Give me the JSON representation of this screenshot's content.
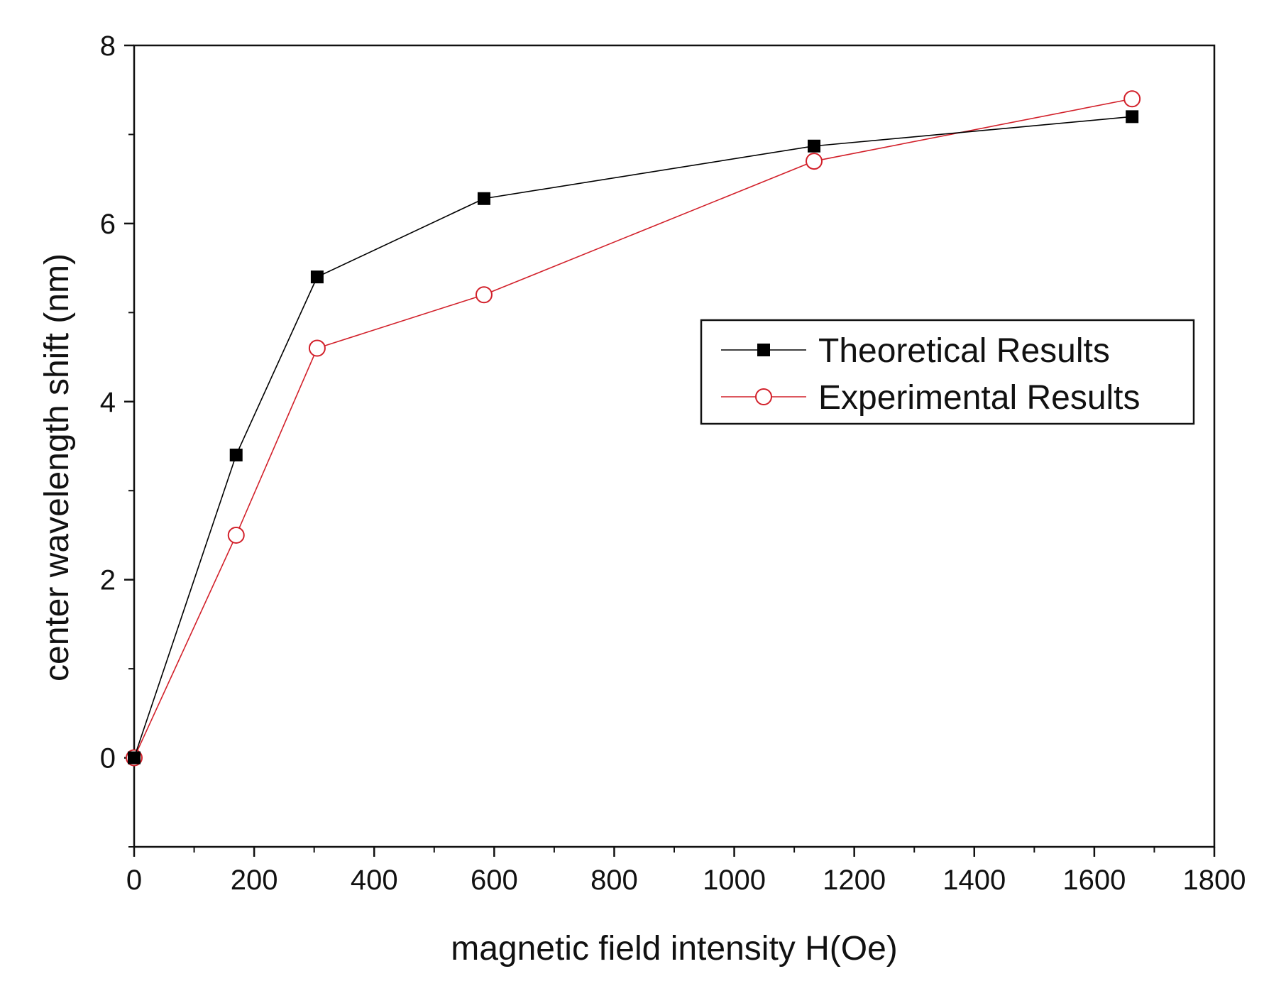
{
  "chart_data": {
    "type": "line",
    "title": "",
    "xlabel": "magnetic field intensity H(Oe)",
    "ylabel": "center wavelength shift (nm)",
    "xlim": [
      0,
      1800
    ],
    "ylim": [
      -1,
      8
    ],
    "xticks": [
      0,
      200,
      400,
      600,
      800,
      1000,
      1200,
      1400,
      1600,
      1800
    ],
    "xtick_labels": [
      "0",
      "200",
      "400",
      "600",
      "800",
      "1000",
      "1200",
      "1400",
      "1600",
      "1800"
    ],
    "yticks": [
      0,
      2,
      4,
      6,
      8
    ],
    "ytick_labels": [
      "0",
      "2",
      "4",
      "6",
      "8"
    ],
    "grid": false,
    "legend_position": "center-right",
    "series": [
      {
        "name": "Theoretical Results",
        "marker": "filled-square",
        "color": "#000000",
        "x": [
          0,
          170,
          305,
          583,
          1133,
          1663
        ],
        "y": [
          0,
          3.4,
          5.4,
          6.28,
          6.87,
          7.2
        ]
      },
      {
        "name": "Experimental Results",
        "marker": "open-circle",
        "color": "#d2202a",
        "x": [
          0,
          170,
          305,
          583,
          1133,
          1663
        ],
        "y": [
          0,
          2.5,
          4.6,
          5.2,
          6.7,
          7.4
        ]
      }
    ]
  }
}
